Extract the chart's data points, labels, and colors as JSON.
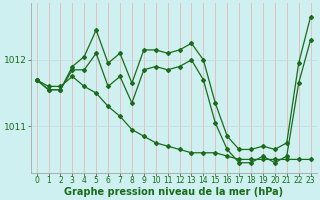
{
  "line1": [
    1011.7,
    1011.55,
    1011.55,
    1011.9,
    1012.05,
    1012.45,
    1011.95,
    1012.1,
    1011.65,
    1012.15,
    1012.15,
    1012.1,
    1012.15,
    1012.25,
    1012.0,
    1011.35,
    1010.85,
    1010.65,
    1010.65,
    1010.7,
    1010.65,
    1010.75,
    1011.95,
    1012.65
  ],
  "line2": [
    1011.7,
    1011.55,
    1011.55,
    1011.85,
    1011.85,
    1012.1,
    1011.6,
    1011.75,
    1011.35,
    1011.85,
    1011.9,
    1011.85,
    1011.9,
    1012.0,
    1011.7,
    1011.05,
    1010.65,
    1010.45,
    1010.45,
    1010.55,
    1010.45,
    1010.55,
    1011.65,
    1012.3
  ],
  "line3": [
    1011.7,
    1011.6,
    1011.6,
    1011.75,
    1011.6,
    1011.5,
    1011.3,
    1011.15,
    1010.95,
    1010.85,
    1010.75,
    1010.7,
    1010.65,
    1010.6,
    1010.6,
    1010.6,
    1010.55,
    1010.5,
    1010.5,
    1010.5,
    1010.5,
    1010.5,
    1010.5,
    1010.5
  ],
  "x_labels": [
    "0",
    "1",
    "2",
    "3",
    "4",
    "5",
    "6",
    "7",
    "8",
    "9",
    "10",
    "11",
    "12",
    "13",
    "14",
    "15",
    "16",
    "17",
    "18",
    "19",
    "20",
    "21",
    "22",
    "23"
  ],
  "xlabel": "Graphe pression niveau de la mer (hPa)",
  "line_color": "#1a6b1a",
  "bg_color": "#cff0f0",
  "grid_color_v": "#e8b8b8",
  "grid_color_h": "#c8dede",
  "marker": "D",
  "marker_size": 2.0,
  "linewidth": 0.9,
  "ylim": [
    1010.3,
    1012.85
  ],
  "yticks": [
    1011,
    1012
  ],
  "xtick_fontsize": 5.5,
  "ytick_fontsize": 6.5,
  "xlabel_fontsize": 7.0
}
